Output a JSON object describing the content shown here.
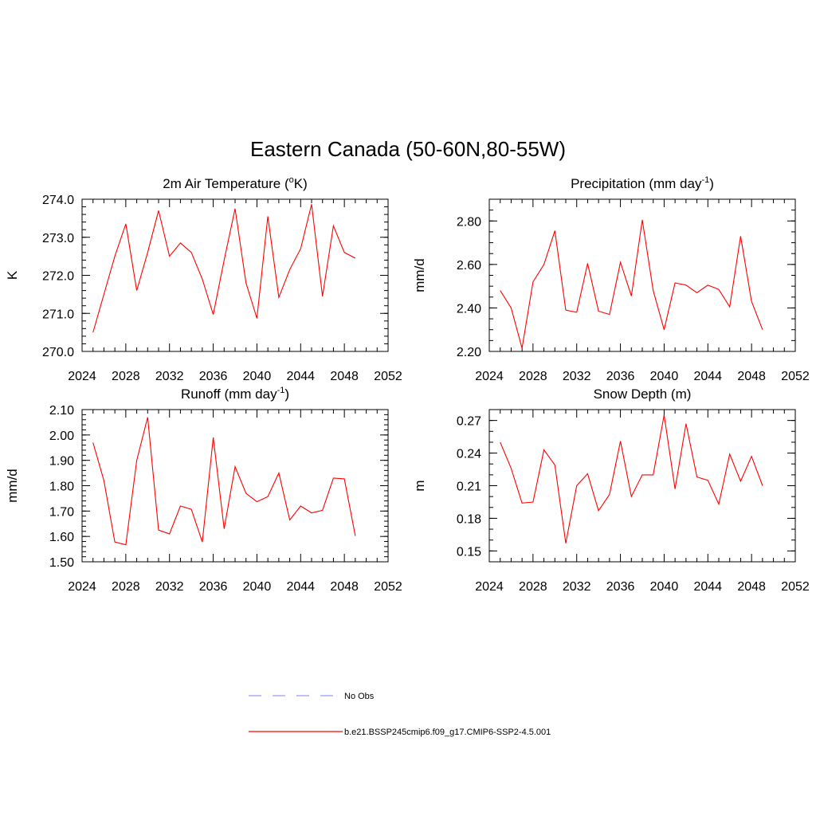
{
  "figure": {
    "title": "Eastern Canada (50-60N,80-55W)"
  },
  "legend": {
    "obs_label": "No Obs",
    "obs_color": "#9999ff",
    "model_label": "b.e21.BSSP245cmip6.f09_g17.CMIP6-SSP2-4.5.001",
    "model_color": "#ff0000"
  },
  "chart_data": [
    {
      "type": "line",
      "title": "2m Air Temperature",
      "title_unit_base": "(",
      "title_unit_sup": "o",
      "title_unit_tail": "K)",
      "ylabel": "K",
      "x_ticks": [
        "2024",
        "2028",
        "2032",
        "2036",
        "2040",
        "2044",
        "2048",
        "2052"
      ],
      "xlim": [
        2024,
        2052
      ],
      "ylim": [
        270.0,
        274.0
      ],
      "y_ticks": [
        "270.0",
        "271.0",
        "272.0",
        "273.0",
        "274.0"
      ],
      "y_minor_step": 0.2,
      "color": "#ff0000",
      "x": [
        2025,
        2026,
        2027,
        2028,
        2029,
        2030,
        2031,
        2032,
        2033,
        2034,
        2035,
        2036,
        2037,
        2038,
        2039,
        2040,
        2041,
        2042,
        2043,
        2044,
        2045,
        2046,
        2047,
        2048,
        2049
      ],
      "values": [
        270.5,
        271.5,
        272.5,
        273.35,
        271.6,
        272.6,
        273.7,
        272.5,
        272.85,
        272.6,
        271.9,
        270.97,
        272.4,
        273.75,
        271.8,
        270.87,
        273.55,
        271.42,
        272.15,
        272.7,
        273.87,
        271.45,
        273.3,
        272.6,
        272.45
      ]
    },
    {
      "type": "line",
      "title": "Precipitation",
      "title_unit_base": "(mm day",
      "title_unit_sup": "-1",
      "title_unit_tail": ")",
      "ylabel": "mm/d",
      "x_ticks": [
        "2024",
        "2028",
        "2032",
        "2036",
        "2040",
        "2044",
        "2048",
        "2052"
      ],
      "xlim": [
        2024,
        2052
      ],
      "ylim": [
        2.2,
        2.9
      ],
      "y_ticks": [
        "2.20",
        "2.40",
        "2.60",
        "2.80"
      ],
      "y_tick_values": [
        2.2,
        2.4,
        2.6,
        2.8
      ],
      "y_minor_step": 0.05,
      "color": "#ff0000",
      "x": [
        2025,
        2026,
        2027,
        2028,
        2029,
        2030,
        2031,
        2032,
        2033,
        2034,
        2035,
        2036,
        2037,
        2038,
        2039,
        2040,
        2041,
        2042,
        2043,
        2044,
        2045,
        2046,
        2047,
        2048,
        2049
      ],
      "values": [
        2.48,
        2.4,
        2.215,
        2.52,
        2.6,
        2.755,
        2.39,
        2.38,
        2.605,
        2.385,
        2.37,
        2.61,
        2.455,
        2.805,
        2.48,
        2.3,
        2.515,
        2.505,
        2.47,
        2.505,
        2.485,
        2.405,
        2.73,
        2.43,
        2.3
      ]
    },
    {
      "type": "line",
      "title": "Runoff",
      "title_unit_base": "(mm day",
      "title_unit_sup": "-1",
      "title_unit_tail": ")",
      "ylabel": "mm/d",
      "x_ticks": [
        "2024",
        "2028",
        "2032",
        "2036",
        "2040",
        "2044",
        "2048",
        "2052"
      ],
      "xlim": [
        2024,
        2052
      ],
      "ylim": [
        1.5,
        2.1
      ],
      "y_ticks": [
        "1.50",
        "1.60",
        "1.70",
        "1.80",
        "1.90",
        "2.00",
        "2.10"
      ],
      "y_tick_values": [
        1.5,
        1.6,
        1.7,
        1.8,
        1.9,
        2.0,
        2.1
      ],
      "y_minor_step": 0.02,
      "color": "#ff0000",
      "x": [
        2025,
        2026,
        2027,
        2028,
        2029,
        2030,
        2031,
        2032,
        2033,
        2034,
        2035,
        2036,
        2037,
        2038,
        2039,
        2040,
        2041,
        2042,
        2043,
        2044,
        2045,
        2046,
        2047,
        2048,
        2049
      ],
      "values": [
        1.97,
        1.82,
        1.578,
        1.567,
        1.9,
        2.07,
        1.625,
        1.61,
        1.72,
        1.707,
        1.578,
        1.99,
        1.63,
        1.875,
        1.77,
        1.737,
        1.757,
        1.85,
        1.665,
        1.72,
        1.693,
        1.703,
        1.83,
        1.827,
        1.602
      ]
    },
    {
      "type": "line",
      "title": "Snow Depth (m)",
      "title_unit_base": "",
      "title_unit_sup": "",
      "title_unit_tail": "",
      "ylabel": "m",
      "x_ticks": [
        "2024",
        "2028",
        "2032",
        "2036",
        "2040",
        "2044",
        "2048",
        "2052"
      ],
      "xlim": [
        2024,
        2052
      ],
      "ylim": [
        0.14,
        0.28
      ],
      "y_ticks": [
        "0.15",
        "0.18",
        "0.21",
        "0.24",
        "0.27"
      ],
      "y_tick_values": [
        0.15,
        0.18,
        0.21,
        0.24,
        0.27
      ],
      "y_minor_step": 0.01,
      "color": "#ff0000",
      "x": [
        2025,
        2026,
        2027,
        2028,
        2029,
        2030,
        2031,
        2032,
        2033,
        2034,
        2035,
        2036,
        2037,
        2038,
        2039,
        2040,
        2041,
        2042,
        2043,
        2044,
        2045,
        2046,
        2047,
        2048,
        2049
      ],
      "values": [
        0.25,
        0.226,
        0.194,
        0.195,
        0.243,
        0.229,
        0.157,
        0.21,
        0.221,
        0.187,
        0.202,
        0.251,
        0.2,
        0.22,
        0.22,
        0.275,
        0.207,
        0.267,
        0.218,
        0.215,
        0.193,
        0.239,
        0.214,
        0.237,
        0.21
      ]
    }
  ]
}
